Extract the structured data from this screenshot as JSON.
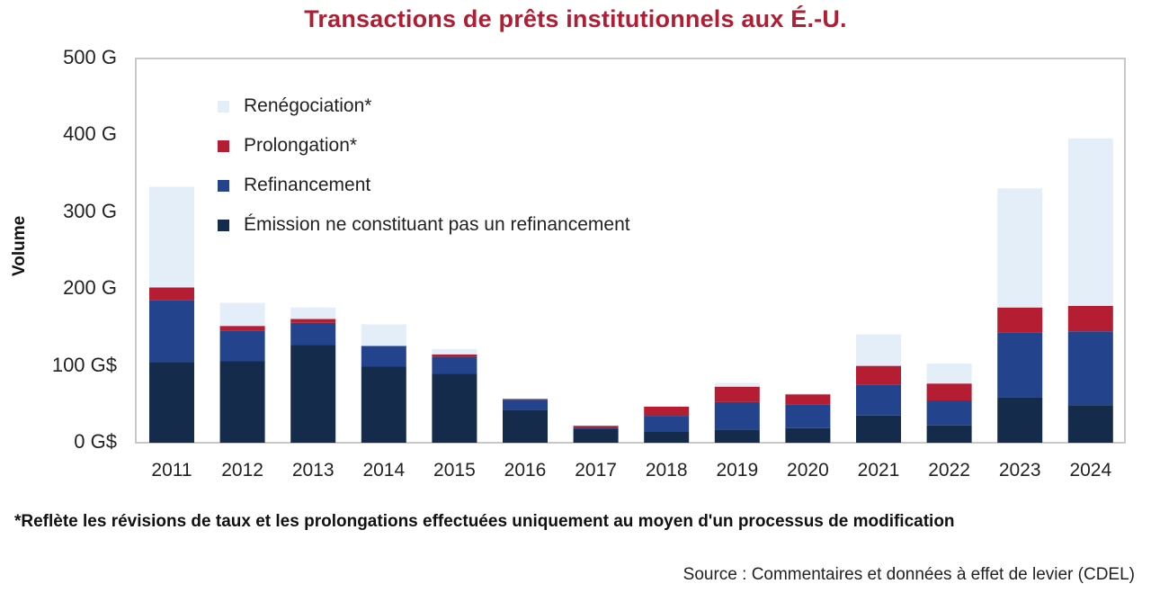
{
  "chart_data": {
    "type": "bar",
    "stacked": true,
    "title": "Transactions de prêts institutionnels aux É.-U.",
    "xlabel": "",
    "ylabel": "Volume",
    "ylim": [
      0,
      500
    ],
    "yticks": [
      {
        "value": 0,
        "label": "0 G$"
      },
      {
        "value": 100,
        "label": "100 G$"
      },
      {
        "value": 200,
        "label": "200 G"
      },
      {
        "value": 300,
        "label": "300 G"
      },
      {
        "value": 400,
        "label": "400 G"
      },
      {
        "value": 500,
        "label": "500 G"
      }
    ],
    "categories": [
      "2011",
      "2012",
      "2013",
      "2014",
      "2015",
      "2016",
      "2017",
      "2018",
      "2019",
      "2020",
      "2021",
      "2022",
      "2023",
      "2024"
    ],
    "series": [
      {
        "name": "Émission ne constituant pas un refinancement",
        "color": "#142B4C",
        "values": [
          105,
          106,
          127,
          99,
          90,
          43,
          18,
          14,
          17,
          19,
          36,
          23,
          59,
          49
        ]
      },
      {
        "name": "Refinancement",
        "color": "#23448C",
        "values": [
          81,
          40,
          29,
          27,
          22,
          13,
          2,
          21,
          36,
          31,
          39,
          32,
          84,
          96
        ]
      },
      {
        "name": "Prolongation*",
        "color": "#B51E32",
        "values": [
          16,
          6,
          5,
          0,
          3,
          1,
          2,
          12,
          20,
          13,
          25,
          22,
          33,
          33
        ]
      },
      {
        "name": "Renégociation*",
        "color": "#E3EEF9",
        "values": [
          131,
          30,
          15,
          28,
          7,
          0,
          0,
          0,
          5,
          1,
          41,
          26,
          155,
          218
        ]
      }
    ],
    "legend": {
      "placement": "top-left",
      "order": [
        "Renégociation*",
        "Prolongation*",
        "Refinancement",
        "Émission ne constituant pas un refinancement"
      ]
    },
    "grid": false
  },
  "footnote": "*Reflète les révisions de taux et les prolongations effectuées uniquement au moyen d'un processus de modification",
  "source": "Source : Commentaires et données à effet de levier (CDEL)",
  "colors": {
    "title": "#B01E33",
    "axis": "#c8c8c8"
  }
}
